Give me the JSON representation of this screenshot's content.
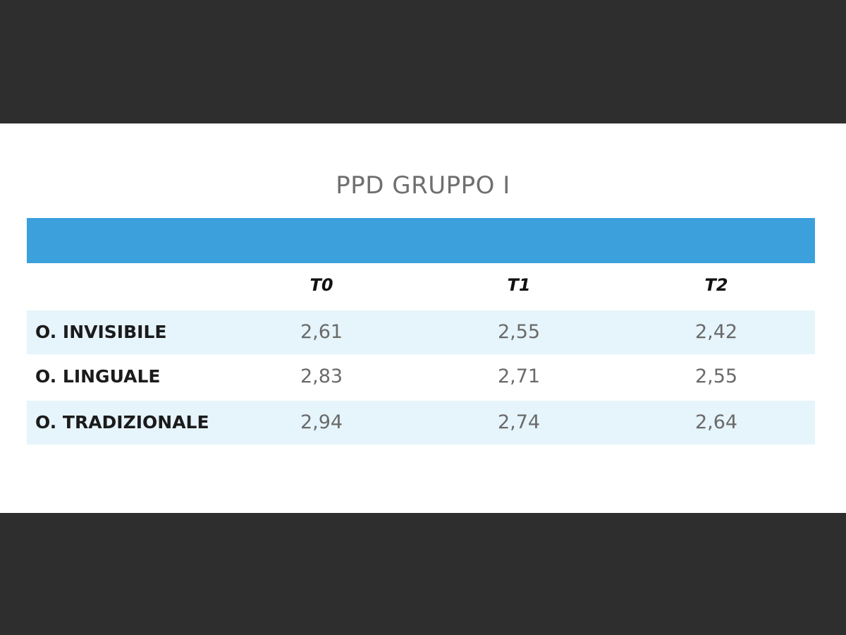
{
  "chart_data": {
    "type": "table",
    "title": "PPD GRUPPO I",
    "columns": [
      "T0",
      "T1",
      "T2"
    ],
    "rows": [
      {
        "label": "O. INVISIBILE",
        "values": [
          "2,61",
          "2,55",
          "2,42"
        ]
      },
      {
        "label": "O. LINGUALE",
        "values": [
          "2,83",
          "2,71",
          "2,55"
        ]
      },
      {
        "label": "O. TRADIZIONALE",
        "values": [
          "2,94",
          "2,74",
          "2,64"
        ]
      }
    ],
    "colors": {
      "header_bar": "#3ba0dc",
      "row_shade": "#e6f4fb",
      "background_band": "#2e2e2e"
    }
  }
}
